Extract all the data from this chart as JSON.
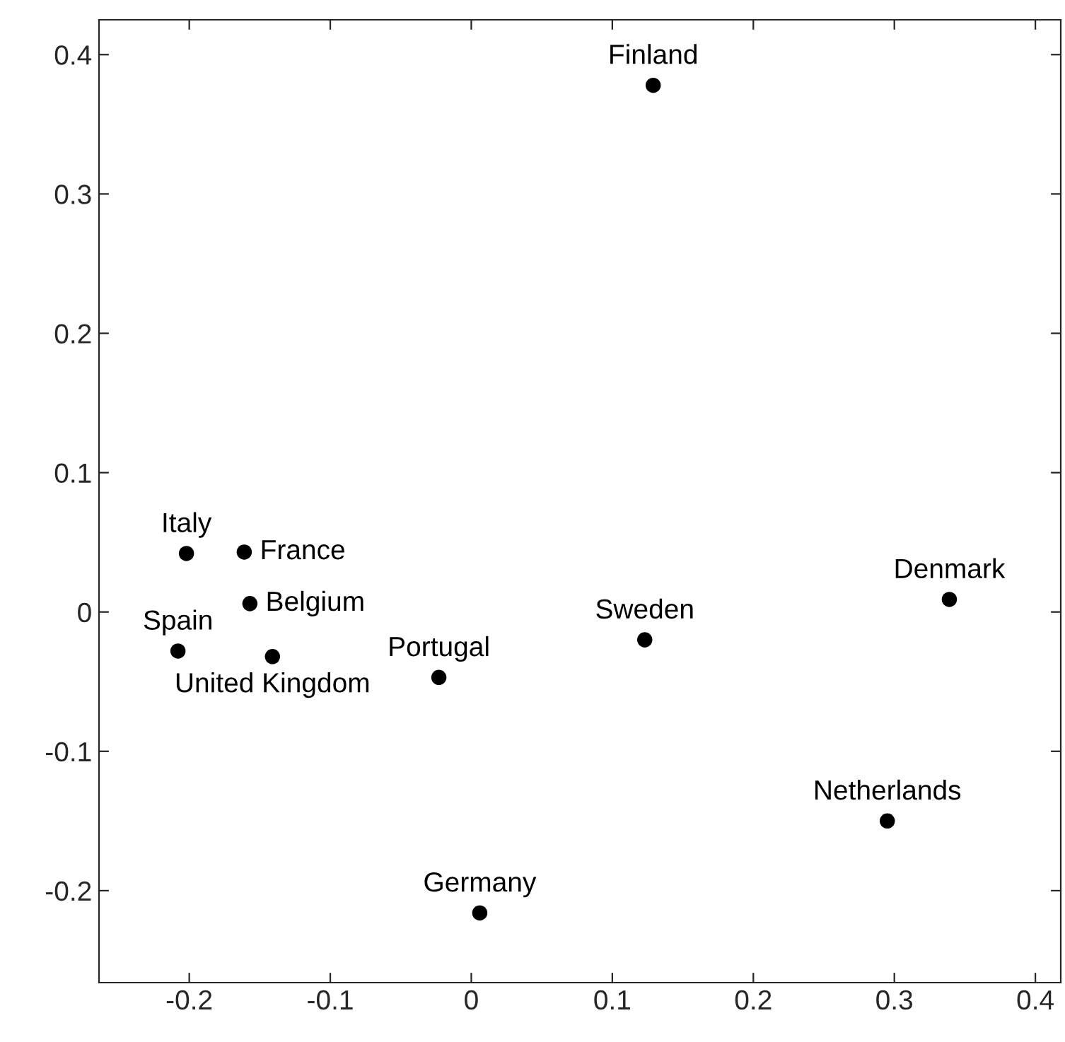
{
  "chart_data": {
    "type": "scatter",
    "x": [
      0.129,
      0.339,
      0.123,
      0.295,
      0.006,
      -0.023,
      -0.202,
      -0.161,
      -0.157,
      -0.208,
      -0.141
    ],
    "series": [
      {
        "color": "#000000",
        "values": [
          0.378,
          0.009,
          -0.02,
          -0.15,
          -0.216,
          -0.047,
          0.042,
          0.043,
          0.006,
          -0.028,
          -0.032
        ]
      }
    ],
    "annotations": [
      {
        "text": "Finland",
        "x": 0.129,
        "y": 0.378
      },
      {
        "text": "Denmark",
        "x": 0.339,
        "y": 0.009
      },
      {
        "text": "Sweden",
        "x": 0.123,
        "y": -0.02
      },
      {
        "text": "Netherlands",
        "x": 0.295,
        "y": -0.15
      },
      {
        "text": "Germany",
        "x": 0.006,
        "y": -0.216
      },
      {
        "text": "Portugal",
        "x": -0.023,
        "y": -0.047
      },
      {
        "text": "Italy",
        "x": -0.202,
        "y": 0.042
      },
      {
        "text": "France",
        "x": -0.161,
        "y": 0.043
      },
      {
        "text": "Belgium",
        "x": -0.157,
        "y": 0.006
      },
      {
        "text": "Spain",
        "x": -0.208,
        "y": -0.028
      },
      {
        "text": "United Kingdom",
        "x": -0.141,
        "y": -0.032
      }
    ],
    "xlim": [
      -0.264,
      0.418
    ],
    "ylim": [
      -0.266,
      0.425
    ],
    "xticks": [
      {
        "value": -0.2,
        "label": "-0.2"
      },
      {
        "value": -0.1,
        "label": "-0.1"
      },
      0,
      0.1,
      0.2,
      0.3,
      0.4
    ],
    "yticks": [
      {
        "value": -0.2,
        "label": "-0.2"
      },
      {
        "value": -0.1,
        "label": "-0.1"
      },
      0,
      0.1,
      0.2,
      0.3,
      0.4
    ],
    "marker": "circle",
    "grid": false,
    "legend": false
  }
}
